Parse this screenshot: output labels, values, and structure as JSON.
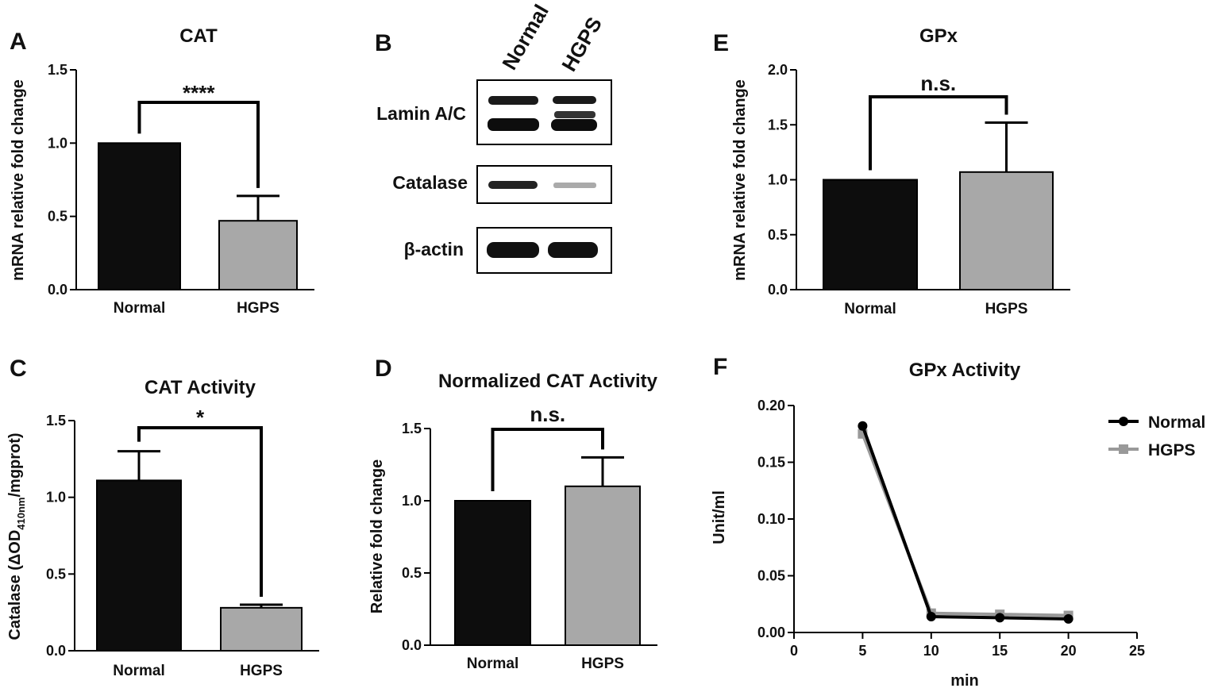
{
  "colors": {
    "normal_fill": "#0d0d0d",
    "hgps_fill": "#a8a8a8",
    "normal_line": "#000000",
    "hgps_line": "#999999",
    "axis": "#000000",
    "band": "#1a1a1a"
  },
  "panels": {
    "A": {
      "letter": "A"
    },
    "B": {
      "letter": "B"
    },
    "C": {
      "letter": "C"
    },
    "D": {
      "letter": "D"
    },
    "E": {
      "letter": "E"
    },
    "F": {
      "letter": "F"
    }
  },
  "western_blot": {
    "lanes": [
      "Normal",
      "HGPS"
    ],
    "bands": [
      "Lamin A/C",
      "Catalase",
      "β-actin"
    ]
  },
  "chart_data": [
    {
      "id": "A",
      "type": "bar",
      "title": "CAT",
      "ylabel": "mRNA relative fold change",
      "categories": [
        "Normal",
        "HGPS"
      ],
      "values": [
        1.0,
        0.47
      ],
      "errors": [
        0,
        0.17
      ],
      "ylim": [
        0,
        1.5
      ],
      "yticks": [
        "0.0",
        "0.5",
        "1.0",
        "1.5"
      ],
      "significance": "****"
    },
    {
      "id": "C",
      "type": "bar",
      "title": "CAT Activity",
      "ylabel": {
        "prefix": "Catalase (ΔOD",
        "subscript": "410nm",
        "suffix": "/mgprot)"
      },
      "categories": [
        "Normal",
        "HGPS"
      ],
      "values": [
        1.11,
        0.28
      ],
      "errors": [
        0.19,
        0.02
      ],
      "ylim": [
        0,
        1.5
      ],
      "yticks": [
        "0.0",
        "0.5",
        "1.0",
        "1.5"
      ],
      "significance": "*"
    },
    {
      "id": "D",
      "type": "bar",
      "title": "Normalized CAT Activity",
      "ylabel": "Relative fold change",
      "categories": [
        "Normal",
        "HGPS"
      ],
      "values": [
        1.0,
        1.1
      ],
      "errors": [
        0,
        0.2
      ],
      "ylim": [
        0,
        1.5
      ],
      "yticks": [
        "0.0",
        "0.5",
        "1.0",
        "1.5"
      ],
      "significance": "n.s."
    },
    {
      "id": "E",
      "type": "bar",
      "title": "GPx",
      "ylabel": "mRNA relative fold change",
      "categories": [
        "Normal",
        "HGPS"
      ],
      "values": [
        1.0,
        1.07
      ],
      "errors": [
        0,
        0.45
      ],
      "ylim": [
        0,
        2.0
      ],
      "yticks": [
        "0.0",
        "0.5",
        "1.0",
        "1.5",
        "2.0"
      ],
      "significance": "n.s."
    },
    {
      "id": "F",
      "type": "line",
      "title": "GPx Activity",
      "xlabel": "min",
      "ylabel": "Unit/ml",
      "xlim": [
        0,
        25
      ],
      "ylim": [
        0,
        0.2
      ],
      "xticks": [
        "0",
        "5",
        "10",
        "15",
        "20",
        "25"
      ],
      "yticks": [
        "0.00",
        "0.05",
        "0.10",
        "0.15",
        "0.20"
      ],
      "legend_position": "right",
      "series": [
        {
          "name": "Normal",
          "x": [
            5,
            10,
            15,
            20
          ],
          "y": [
            0.182,
            0.014,
            0.013,
            0.012
          ]
        },
        {
          "name": "HGPS",
          "x": [
            5,
            10,
            15,
            20
          ],
          "y": [
            0.175,
            0.017,
            0.016,
            0.015
          ]
        }
      ]
    }
  ]
}
